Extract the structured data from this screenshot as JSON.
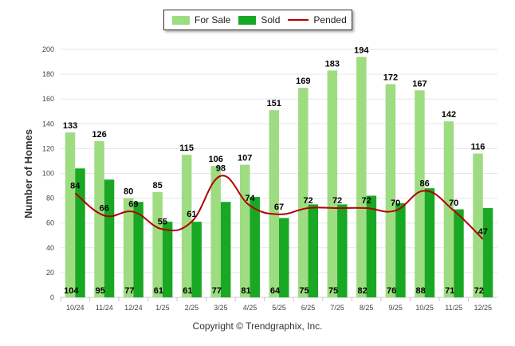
{
  "chart_data": {
    "type": "bar",
    "title": "",
    "xlabel": "",
    "ylabel": "Number of Homes",
    "ylim": [
      0,
      200
    ],
    "yticks": [
      0,
      20,
      40,
      60,
      80,
      100,
      120,
      140,
      160,
      180,
      200
    ],
    "categories": [
      "10/24",
      "11/24",
      "12/24",
      "1/25",
      "2/25",
      "3/25",
      "4/25",
      "5/25",
      "6/25",
      "7/25",
      "8/25",
      "9/25",
      "10/25",
      "11/25",
      "12/25"
    ],
    "series": [
      {
        "name": "For Sale",
        "kind": "bar",
        "color": "#9edc82",
        "values": [
          133,
          126,
          80,
          85,
          115,
          106,
          107,
          151,
          169,
          183,
          194,
          172,
          167,
          142,
          116
        ]
      },
      {
        "name": "Sold",
        "kind": "bar",
        "color": "#19a824",
        "values": [
          104,
          95,
          77,
          61,
          61,
          77,
          81,
          64,
          75,
          75,
          82,
          76,
          88,
          71,
          72
        ]
      },
      {
        "name": "Pended",
        "kind": "line",
        "color": "#b00000",
        "values": [
          84,
          66,
          69,
          55,
          61,
          98,
          74,
          67,
          72,
          72,
          72,
          70,
          86,
          70,
          47
        ]
      }
    ],
    "legend": "top-center"
  },
  "footer": {
    "copyright": "Copyright © Trendgraphix, Inc."
  }
}
